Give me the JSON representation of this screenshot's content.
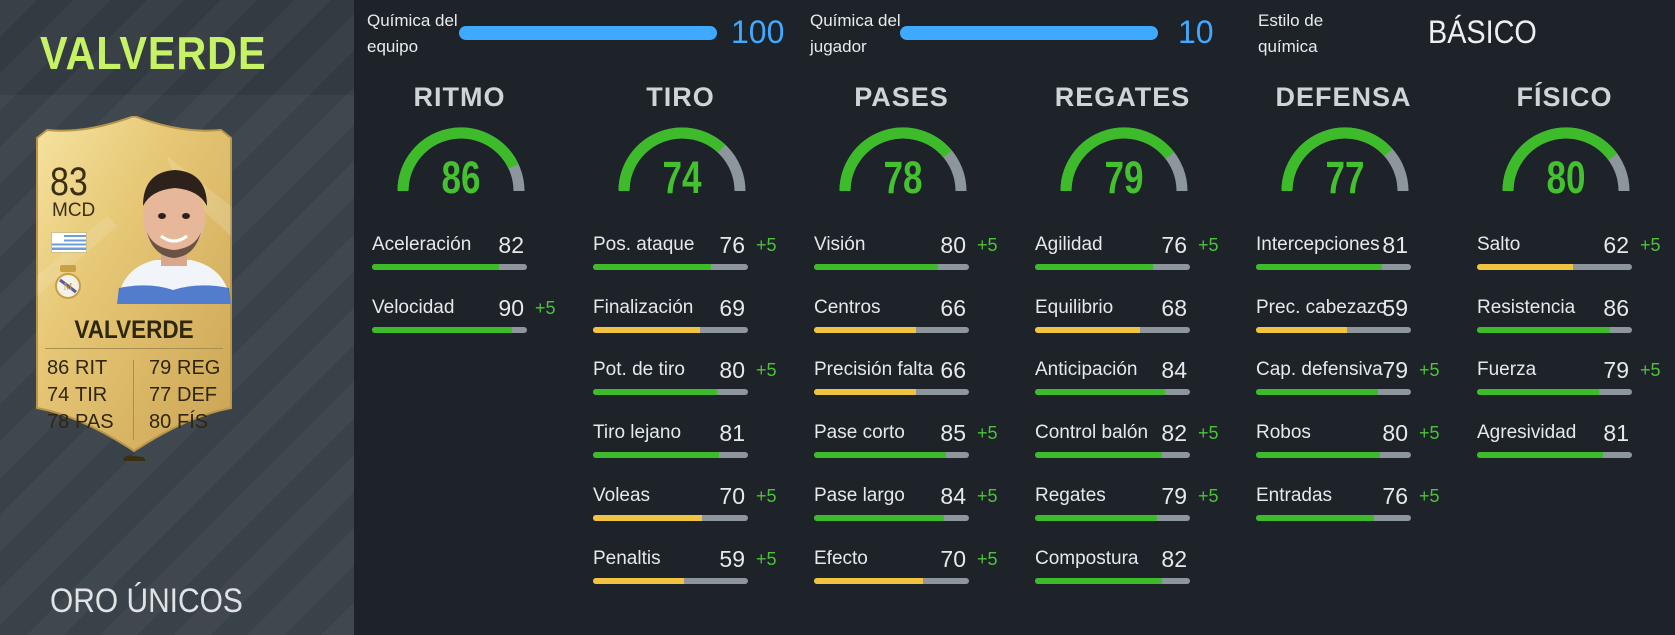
{
  "player": {
    "name": "VALVERDE",
    "card_type": "ORO ÚNICOS",
    "card": {
      "rating": "83",
      "position": "MCD",
      "name": "VALVERDE",
      "stats": [
        {
          "value": "86",
          "label": "RIT"
        },
        {
          "value": "74",
          "label": "TIR"
        },
        {
          "value": "78",
          "label": "PAS"
        },
        {
          "value": "79",
          "label": "REG"
        },
        {
          "value": "77",
          "label": "DEF"
        },
        {
          "value": "80",
          "label": "FÍS"
        }
      ]
    }
  },
  "chemistry": {
    "team": {
      "label_line1": "Química del",
      "label_line2": "equipo",
      "value": "100"
    },
    "player": {
      "label_line1": "Química del",
      "label_line2": "jugador",
      "value": "10"
    },
    "style": {
      "label_line1": "Estilo de",
      "label_line2": "química",
      "value": "BÁSICO"
    }
  },
  "colors": {
    "high": "#3dbb2b",
    "mid": "#f0c340",
    "track": "#8e969d",
    "chem_blue": "#3fa8ff",
    "name_green": "#c7f266"
  },
  "categories": [
    {
      "title": "RITMO",
      "value": 86,
      "stats": [
        {
          "name": "Aceleración",
          "value": 82,
          "boost": ""
        },
        {
          "name": "Velocidad",
          "value": 90,
          "boost": "+5"
        }
      ]
    },
    {
      "title": "TIRO",
      "value": 74,
      "stats": [
        {
          "name": "Pos. ataque",
          "value": 76,
          "boost": "+5"
        },
        {
          "name": "Finalización",
          "value": 69,
          "boost": ""
        },
        {
          "name": "Pot. de tiro",
          "value": 80,
          "boost": "+5"
        },
        {
          "name": "Tiro lejano",
          "value": 81,
          "boost": ""
        },
        {
          "name": "Voleas",
          "value": 70,
          "boost": "+5"
        },
        {
          "name": "Penaltis",
          "value": 59,
          "boost": "+5"
        }
      ]
    },
    {
      "title": "PASES",
      "value": 78,
      "stats": [
        {
          "name": "Visión",
          "value": 80,
          "boost": "+5"
        },
        {
          "name": "Centros",
          "value": 66,
          "boost": ""
        },
        {
          "name": "Precisión falta",
          "value": 66,
          "boost": ""
        },
        {
          "name": "Pase corto",
          "value": 85,
          "boost": "+5"
        },
        {
          "name": "Pase largo",
          "value": 84,
          "boost": "+5"
        },
        {
          "name": "Efecto",
          "value": 70,
          "boost": "+5"
        }
      ]
    },
    {
      "title": "REGATES",
      "value": 79,
      "stats": [
        {
          "name": "Agilidad",
          "value": 76,
          "boost": "+5"
        },
        {
          "name": "Equilibrio",
          "value": 68,
          "boost": ""
        },
        {
          "name": "Anticipación",
          "value": 84,
          "boost": ""
        },
        {
          "name": "Control balón",
          "value": 82,
          "boost": "+5"
        },
        {
          "name": "Regates",
          "value": 79,
          "boost": "+5"
        },
        {
          "name": "Compostura",
          "value": 82,
          "boost": ""
        }
      ]
    },
    {
      "title": "DEFENSA",
      "value": 77,
      "stats": [
        {
          "name": "Intercepciones",
          "value": 81,
          "boost": ""
        },
        {
          "name": "Prec. cabezazo",
          "value": 59,
          "boost": ""
        },
        {
          "name": "Cap. defensiva",
          "value": 79,
          "boost": "+5"
        },
        {
          "name": "Robos",
          "value": 80,
          "boost": "+5"
        },
        {
          "name": "Entradas",
          "value": 76,
          "boost": "+5"
        }
      ]
    },
    {
      "title": "FÍSICO",
      "value": 80,
      "stats": [
        {
          "name": "Salto",
          "value": 62,
          "boost": "+5"
        },
        {
          "name": "Resistencia",
          "value": 86,
          "boost": ""
        },
        {
          "name": "Fuerza",
          "value": 79,
          "boost": "+5"
        },
        {
          "name": "Agresividad",
          "value": 81,
          "boost": ""
        }
      ]
    }
  ]
}
